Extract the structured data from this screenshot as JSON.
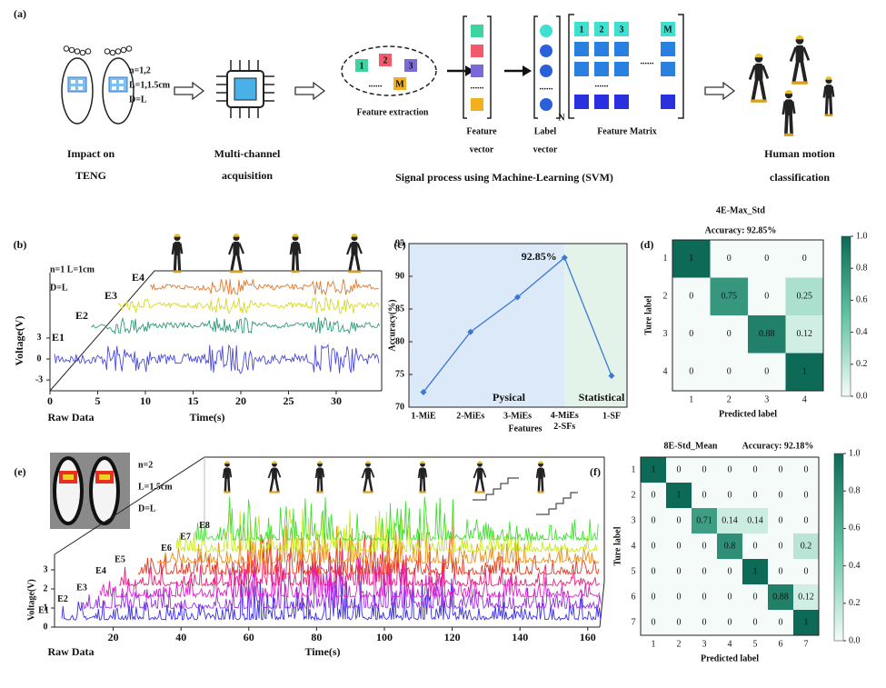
{
  "panel_a": {
    "label": "(a)",
    "sensor_params": [
      "n=1,2",
      "L=1,1.5cm",
      "D=L"
    ],
    "steps": [
      [
        "Impact on",
        "TENG"
      ],
      [
        "Multi-channel",
        "acquisition"
      ]
    ],
    "feature_tiles": [
      "1",
      "2",
      "3",
      "M"
    ],
    "ellipsis": "......",
    "feature_extraction": "Feature extraction",
    "feature_vector": [
      "Feature",
      "vector"
    ],
    "label_vector": [
      "Label",
      "vector"
    ],
    "n_label": "N",
    "matrix_header": [
      "1",
      "2",
      "3",
      "M"
    ],
    "feature_matrix": "Feature Matrix",
    "signal_process": "Signal process using Machine-Learning (SVM)",
    "output": [
      "Human motion",
      "classification"
    ]
  },
  "panel_b": {
    "label": "(b)",
    "params": [
      "n=1 L=1cm",
      "D=L"
    ],
    "channels": [
      "E1",
      "E2",
      "E3",
      "E4"
    ],
    "ylabel": "Voltage(V)",
    "ylim": [
      -4.5,
      4.5
    ],
    "yticks": [
      -3,
      0,
      3
    ],
    "xlim": [
      0,
      33
    ],
    "xticks": [
      0,
      5,
      10,
      15,
      20,
      25,
      30
    ],
    "xlabel": "Time(s)",
    "corner_label": "Raw Data",
    "colors": [
      "#4a4ad8",
      "#2e9a7a",
      "#d8d820",
      "#e07a30"
    ]
  },
  "panel_e": {
    "label": "(e)",
    "params": [
      "n=2",
      "L=1.5cm",
      "D=L"
    ],
    "channels": [
      "E1",
      "E2",
      "E3",
      "E4",
      "E5",
      "E6",
      "E7",
      "E8"
    ],
    "ylabel": "Voltage(V)",
    "ylim": [
      0,
      3.6
    ],
    "yticks": [
      0,
      1,
      2,
      3
    ],
    "xlim": [
      0,
      168
    ],
    "xticks": [
      20,
      40,
      60,
      80,
      100,
      120,
      140,
      160
    ],
    "xlabel": "Time(s)",
    "corner_label": "Raw Data",
    "colors": [
      "#3a2ee8",
      "#9a30e0",
      "#e020c8",
      "#e8207a",
      "#e83a20",
      "#e89020",
      "#c8e820",
      "#40e030"
    ]
  },
  "chart_data": [
    {
      "type": "line",
      "panel": "(c)",
      "categories": [
        "1-MiE",
        "2-MiEs",
        "3-MiEs",
        "4-MiEs\n2-SFs",
        "1-SF"
      ],
      "values": [
        72.3,
        81.5,
        86.8,
        92.85,
        74.8
      ],
      "value_labels": [
        null,
        null,
        null,
        "92.85%",
        null
      ],
      "color": "#3a78d8",
      "ylim": [
        70,
        95
      ],
      "yticks": [
        70,
        75,
        80,
        85,
        90,
        95
      ],
      "xlabel": "Features",
      "ylabel": "Accuracy(%)",
      "regions": [
        {
          "label": "Pysical",
          "color": "#dbe9f8"
        },
        {
          "label": "Statistical",
          "color": "#e4f3ea"
        }
      ]
    },
    {
      "type": "heatmap",
      "panel": "(d)",
      "title": "4E-Max_Std",
      "subtitle": "Accuracy: 92.85%",
      "labels": [
        "1",
        "2",
        "3",
        "4"
      ],
      "matrix": [
        [
          1,
          0,
          0,
          0
        ],
        [
          0,
          0.75,
          0,
          0.25
        ],
        [
          0,
          0,
          0.88,
          0.12
        ],
        [
          0,
          0,
          0,
          1
        ]
      ],
      "xlabel": "Predicted label",
      "ylabel": "Ture label",
      "cbar_ticks": [
        {
          "value": 0,
          "label": "0.0"
        },
        0.2,
        0.4,
        0.6,
        0.8,
        {
          "value": 1,
          "label": "1.0"
        }
      ]
    },
    {
      "type": "heatmap",
      "panel": "(f)",
      "title": "8E-Std_Mean",
      "subtitle": "Accuracy: 92.18%",
      "labels": [
        "1",
        "2",
        "3",
        "4",
        "5",
        "6",
        "7"
      ],
      "matrix": [
        [
          1,
          0,
          0,
          0,
          0,
          0,
          0
        ],
        [
          0,
          1,
          0,
          0,
          0,
          0,
          0
        ],
        [
          0,
          0,
          0.71,
          0.14,
          0.14,
          0,
          0
        ],
        [
          0,
          0,
          0,
          0.8,
          0,
          0,
          0.2
        ],
        [
          0,
          0,
          0,
          0,
          1,
          0,
          0
        ],
        [
          0,
          0,
          0,
          0,
          0,
          0.88,
          0.12
        ],
        [
          0,
          0,
          0,
          0,
          0,
          0,
          1
        ]
      ],
      "xlabel": "Predicted label",
      "ylabel": "Ture label",
      "cbar_ticks": [
        {
          "value": 0,
          "label": "0.0"
        },
        0.2,
        0.4,
        0.6,
        0.8,
        {
          "value": 1,
          "label": "1.0"
        }
      ]
    }
  ]
}
